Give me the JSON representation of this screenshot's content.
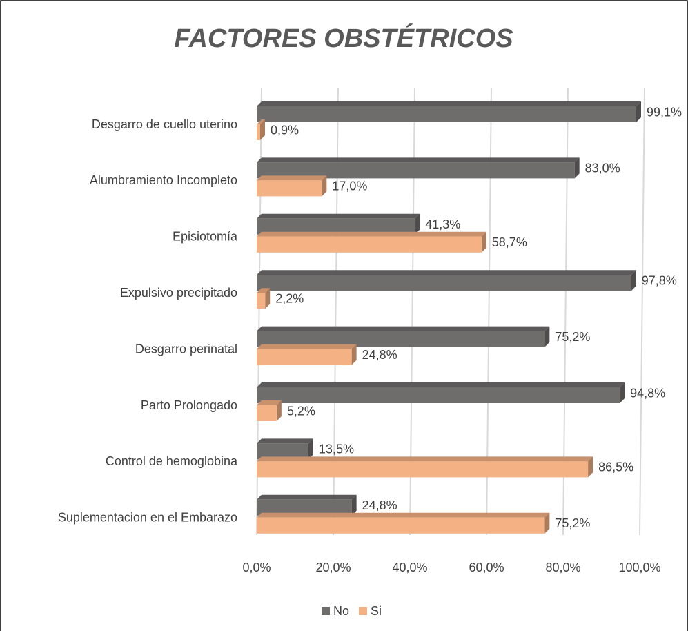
{
  "chart_data": {
    "type": "bar",
    "orientation": "horizontal",
    "title": "FACTORES OBSTÉTRICOS",
    "categories": [
      "Desgarro de cuello uterino",
      "Alumbramiento Incompleto",
      "Episiotomía",
      "Expulsivo precipitado",
      "Desgarro perinatal",
      "Parto Prolongado",
      "Control de hemoglobina",
      "Suplementacion en el Embarazo"
    ],
    "series": [
      {
        "name": "No",
        "color": "#6f6c6c",
        "values": [
          99.1,
          83.0,
          41.3,
          97.8,
          75.2,
          94.8,
          13.5,
          24.8
        ],
        "value_labels": [
          "99,1%",
          "83,0%",
          "41,3%",
          "97,8%",
          "75,2%",
          "94,8%",
          "13,5%",
          "24,8%"
        ]
      },
      {
        "name": "Si",
        "color": "#f4b183",
        "values": [
          0.9,
          17.0,
          58.7,
          2.2,
          24.8,
          5.2,
          86.5,
          75.2
        ],
        "value_labels": [
          "0,9%",
          "17,0%",
          "58,7%",
          "2,2%",
          "24,8%",
          "5,2%",
          "86,5%",
          "75,2%"
        ]
      }
    ],
    "xlim": [
      0,
      100
    ],
    "xticks": [
      {
        "value": 0,
        "label": "0,0%"
      },
      {
        "value": 20,
        "label": "20,0%"
      },
      {
        "value": 40,
        "label": "40,0%"
      },
      {
        "value": 60,
        "label": "60,0%"
      },
      {
        "value": 80,
        "label": "80,0%"
      },
      {
        "value": 100,
        "label": "100,0%"
      }
    ],
    "grid": true,
    "legend": "bottom"
  }
}
